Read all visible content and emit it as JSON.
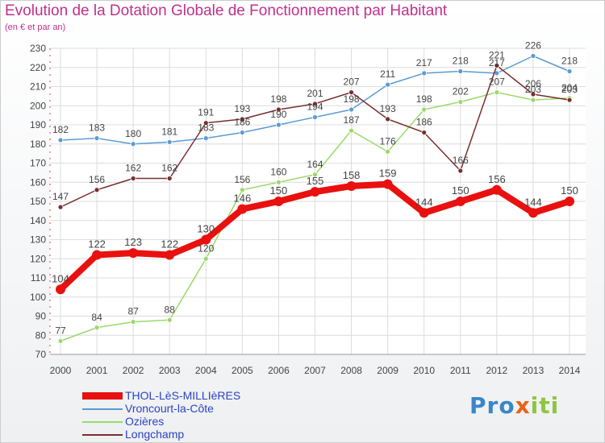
{
  "title": "Evolution de la Dotation Globale de Fonctionnement par Habitant",
  "subtitle": "(en € et par an)",
  "logo": {
    "letters": [
      "P",
      "r",
      "o",
      "x",
      "i",
      "t",
      "i"
    ],
    "colors": [
      "#3a86c8",
      "#3a86c8",
      "#3a86c8",
      "#e8631a",
      "#8dc63f",
      "#8dc63f",
      "#8dc63f"
    ]
  },
  "chart_data": {
    "type": "line",
    "title": "Evolution de la Dotation Globale de Fonctionnement par Habitant",
    "subtitle": "(en € et par an)",
    "xlabel": "",
    "ylabel": "",
    "x": [
      "2000",
      "2001",
      "2002",
      "2003",
      "2004",
      "2005",
      "2006",
      "2007",
      "2008",
      "2009",
      "2010",
      "2011",
      "2012",
      "2013",
      "2014"
    ],
    "ylim": [
      70,
      230
    ],
    "yticks": [
      70,
      80,
      90,
      100,
      110,
      120,
      130,
      140,
      150,
      160,
      170,
      180,
      190,
      200,
      210,
      220,
      230
    ],
    "grid": true,
    "legend_position": "bottom-left",
    "series": [
      {
        "name": "THOL-LèS-MILLIèRES",
        "color": "#e8110f",
        "values": [
          104,
          122,
          123,
          122,
          130,
          146,
          150,
          155,
          158,
          159,
          144,
          150,
          156,
          144,
          150
        ]
      },
      {
        "name": "Vroncourt-la-Côte",
        "color": "#5b9bd5",
        "values": [
          182,
          183,
          180,
          181,
          183,
          186,
          190,
          194,
          198,
          211,
          217,
          218,
          217,
          226,
          218
        ]
      },
      {
        "name": "Ozières",
        "color": "#9bd96a",
        "values": [
          77,
          84,
          87,
          88,
          120,
          156,
          160,
          164,
          187,
          176,
          198,
          202,
          207,
          203,
          204
        ]
      },
      {
        "name": "Longchamp",
        "color": "#7a2e2e",
        "values": [
          147,
          156,
          162,
          162,
          191,
          193,
          198,
          201,
          207,
          193,
          186,
          166,
          221,
          206,
          203
        ]
      }
    ]
  }
}
